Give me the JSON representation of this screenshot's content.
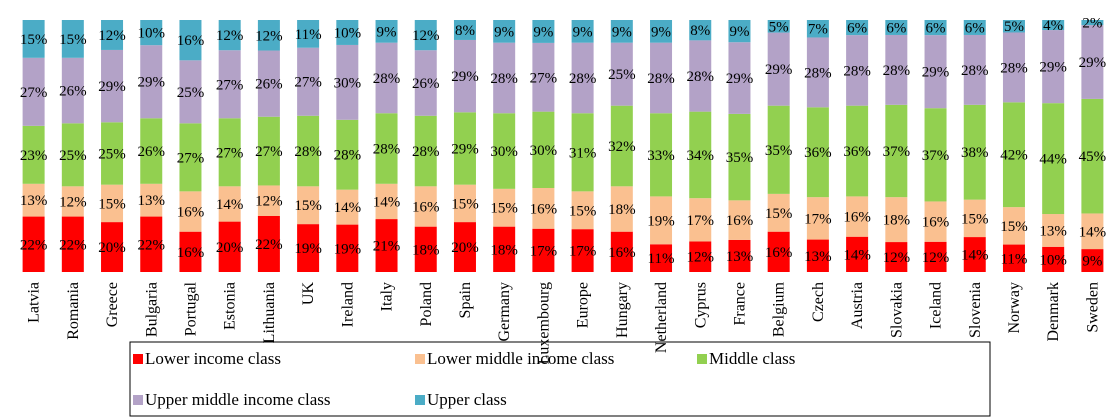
{
  "chart_data": {
    "type": "stacked_bar_percent",
    "categories": [
      "Latvia",
      "Romania",
      "Greece",
      "Bulgaria",
      "Portugal",
      "Estonia",
      "Lithuania",
      "UK",
      "Ireland",
      "Italy",
      "Poland",
      "Spain",
      "Germany",
      "Luxembourg",
      "Europe",
      "Hungary",
      "Netherland",
      "Cyprus",
      "France",
      "Belgium",
      "Czech",
      "Austria",
      "Slovakia",
      "Iceland",
      "Slovenia",
      "Norway",
      "Denmark",
      "Sweden"
    ],
    "series": [
      {
        "name": "Lower income class",
        "color": "#ff0000",
        "values": [
          22,
          22,
          20,
          22,
          16,
          20,
          22,
          19,
          19,
          21,
          18,
          20,
          18,
          17,
          17,
          16,
          11,
          12,
          13,
          16,
          13,
          14,
          12,
          12,
          14,
          11,
          10,
          9
        ],
        "value_labels": [
          "22%",
          "22%",
          "20%",
          "22%",
          "16%",
          "20%",
          "22%",
          "19%",
          "19%",
          "21%",
          "18%",
          "20%",
          "18%",
          "17%",
          "17%",
          "16%",
          "11%",
          "12%",
          "13%",
          "16%",
          "13%",
          "14%",
          "12%",
          "12%",
          "14%",
          "11%",
          "10%",
          "9%"
        ]
      },
      {
        "name": "Lower middle income class",
        "color": "#fac090",
        "values": [
          13,
          12,
          15,
          13,
          16,
          14,
          12,
          15,
          14,
          14,
          16,
          15,
          15,
          16,
          15,
          18,
          19,
          17,
          16,
          15,
          17,
          16,
          18,
          16,
          15,
          15,
          13,
          14
        ],
        "value_labels": [
          "13%",
          "12%",
          "15%",
          "13%",
          "16%",
          "14%",
          "12%",
          "15%",
          "14%",
          "14%",
          "16%",
          "15%",
          "15%",
          "16%",
          "15%",
          "18%",
          "19%",
          "17%",
          "16%",
          "15%",
          "17%",
          "16%",
          "18%",
          "16%",
          "15%",
          "15%",
          "13%",
          "14%"
        ]
      },
      {
        "name": "Middle class",
        "color": "#92d050",
        "values": [
          23,
          25,
          25,
          26,
          27,
          27,
          27,
          28,
          28,
          28,
          28,
          29,
          30,
          30,
          31,
          32,
          33,
          34,
          35,
          35,
          36,
          36,
          37,
          37,
          38,
          42,
          44,
          45
        ],
        "value_labels": [
          "23%",
          "25%",
          "25%",
          "26%",
          "27%",
          "27%",
          "27%",
          "28%",
          "28%",
          "28%",
          "28%",
          "29%",
          "30%",
          "30%",
          "31%",
          "32%",
          "33%",
          "34%",
          "35%",
          "35%",
          "36%",
          "36%",
          "37%",
          "37%",
          "38%",
          "42%",
          "44%",
          "45%"
        ]
      },
      {
        "name": "Upper middle income class",
        "color": "#b3a2c7",
        "values": [
          27,
          26,
          29,
          29,
          25,
          27,
          26,
          27,
          30,
          28,
          26,
          29,
          28,
          27,
          28,
          25,
          28,
          28,
          29,
          29,
          28,
          28,
          28,
          29,
          28,
          28,
          29,
          29
        ],
        "value_labels": [
          "27%",
          "26%",
          "29%",
          "29%",
          "25%",
          "27%",
          "26%",
          "27%",
          "30%",
          "28%",
          "26%",
          "29%",
          "28%",
          "27%",
          "28%",
          "25%",
          "28%",
          "28%",
          "29%",
          "29%",
          "28%",
          "28%",
          "28%",
          "29%",
          "28%",
          "28%",
          "29%",
          "29%"
        ]
      },
      {
        "name": "Upper class",
        "color": "#4bacc6",
        "values": [
          15,
          15,
          12,
          10,
          16,
          12,
          12,
          11,
          10,
          9,
          12,
          8,
          9,
          9,
          9,
          9,
          9,
          8,
          9,
          5,
          7,
          6,
          6,
          6,
          6,
          5,
          4,
          2
        ],
        "value_labels": [
          "15%",
          "15%",
          "12%",
          "10%",
          "16%",
          "12%",
          "12%",
          "11%",
          "10%",
          "9%",
          "12%",
          "8%",
          "9%",
          "9%",
          "9%",
          "9%",
          "9%",
          "8%",
          "9%",
          "5%",
          "7%",
          "6%",
          "6%",
          "6%",
          "6%",
          "5%",
          "4%",
          "2%"
        ]
      }
    ]
  }
}
